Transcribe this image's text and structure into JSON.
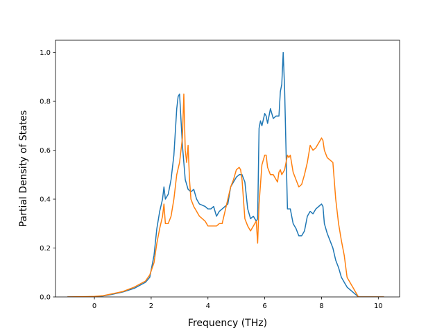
{
  "chart_data": {
    "type": "line",
    "title": "",
    "xlabel": "Frequency (THz)",
    "ylabel": "Partial Density of States",
    "xlim": [
      -1.37,
      10.75
    ],
    "ylim": [
      0,
      1.05
    ],
    "xticks": [
      0,
      2,
      4,
      6,
      8,
      10
    ],
    "yticks": [
      0.0,
      0.2,
      0.4,
      0.6,
      0.8,
      1.0
    ],
    "grid": false,
    "legend": "none",
    "series": [
      {
        "color": "#1f77b4",
        "x": [
          -0.95,
          0.0,
          0.3,
          0.6,
          1.0,
          1.4,
          1.8,
          1.95,
          2.1,
          2.2,
          2.3,
          2.4,
          2.45,
          2.5,
          2.6,
          2.7,
          2.8,
          2.9,
          2.95,
          3.0,
          3.1,
          3.15,
          3.2,
          3.3,
          3.4,
          3.5,
          3.6,
          3.7,
          3.9,
          4.0,
          4.1,
          4.2,
          4.3,
          4.4,
          4.5,
          4.6,
          4.7,
          4.8,
          4.9,
          5.0,
          5.1,
          5.2,
          5.3,
          5.4,
          5.5,
          5.6,
          5.7,
          5.75,
          5.8,
          5.85,
          5.9,
          6.0,
          6.05,
          6.1,
          6.2,
          6.3,
          6.4,
          6.5,
          6.55,
          6.6,
          6.65,
          6.7,
          6.75,
          6.8,
          6.9,
          7.0,
          7.1,
          7.2,
          7.3,
          7.4,
          7.5,
          7.6,
          7.7,
          7.8,
          7.9,
          8.0,
          8.05,
          8.1,
          8.2,
          8.3,
          8.4,
          8.5,
          8.6,
          8.7,
          8.8,
          8.9,
          9.0,
          9.1,
          9.2,
          9.3,
          10.2
        ],
        "y": [
          0.0,
          0.001,
          0.004,
          0.01,
          0.02,
          0.035,
          0.06,
          0.08,
          0.17,
          0.28,
          0.35,
          0.4,
          0.45,
          0.4,
          0.42,
          0.48,
          0.58,
          0.77,
          0.82,
          0.83,
          0.62,
          0.55,
          0.48,
          0.44,
          0.43,
          0.44,
          0.4,
          0.38,
          0.37,
          0.36,
          0.36,
          0.37,
          0.33,
          0.35,
          0.36,
          0.37,
          0.38,
          0.45,
          0.47,
          0.49,
          0.5,
          0.5,
          0.47,
          0.36,
          0.32,
          0.33,
          0.31,
          0.32,
          0.69,
          0.72,
          0.7,
          0.75,
          0.74,
          0.71,
          0.77,
          0.73,
          0.74,
          0.74,
          0.84,
          0.87,
          1.0,
          0.85,
          0.6,
          0.36,
          0.36,
          0.3,
          0.28,
          0.25,
          0.25,
          0.27,
          0.33,
          0.35,
          0.34,
          0.36,
          0.37,
          0.38,
          0.37,
          0.3,
          0.26,
          0.23,
          0.2,
          0.15,
          0.12,
          0.08,
          0.06,
          0.04,
          0.03,
          0.02,
          0.01,
          0.0,
          0.0
        ]
      },
      {
        "color": "#ff7f0e",
        "x": [
          -0.95,
          0.0,
          0.3,
          0.6,
          1.0,
          1.4,
          1.8,
          1.95,
          2.1,
          2.2,
          2.3,
          2.4,
          2.45,
          2.5,
          2.6,
          2.7,
          2.8,
          2.9,
          3.0,
          3.1,
          3.15,
          3.2,
          3.25,
          3.3,
          3.35,
          3.4,
          3.5,
          3.6,
          3.7,
          3.8,
          3.9,
          4.0,
          4.1,
          4.2,
          4.3,
          4.4,
          4.5,
          4.6,
          4.7,
          4.8,
          4.9,
          5.0,
          5.1,
          5.15,
          5.2,
          5.3,
          5.4,
          5.5,
          5.6,
          5.7,
          5.75,
          5.8,
          5.85,
          5.9,
          6.0,
          6.05,
          6.1,
          6.2,
          6.3,
          6.4,
          6.45,
          6.5,
          6.55,
          6.6,
          6.7,
          6.8,
          6.85,
          6.9,
          7.0,
          7.1,
          7.2,
          7.3,
          7.4,
          7.5,
          7.6,
          7.7,
          7.8,
          7.9,
          8.0,
          8.05,
          8.1,
          8.2,
          8.3,
          8.4,
          8.5,
          8.6,
          8.7,
          8.8,
          8.9,
          9.0,
          9.1,
          9.2,
          9.3,
          10.2
        ],
        "y": [
          0.0,
          0.002,
          0.005,
          0.012,
          0.022,
          0.04,
          0.065,
          0.09,
          0.14,
          0.22,
          0.28,
          0.33,
          0.38,
          0.3,
          0.3,
          0.33,
          0.4,
          0.5,
          0.55,
          0.65,
          0.83,
          0.6,
          0.55,
          0.62,
          0.48,
          0.4,
          0.37,
          0.35,
          0.33,
          0.32,
          0.31,
          0.29,
          0.29,
          0.29,
          0.29,
          0.3,
          0.3,
          0.35,
          0.4,
          0.45,
          0.48,
          0.52,
          0.53,
          0.52,
          0.48,
          0.32,
          0.29,
          0.27,
          0.29,
          0.31,
          0.22,
          0.38,
          0.46,
          0.54,
          0.58,
          0.58,
          0.53,
          0.5,
          0.5,
          0.48,
          0.47,
          0.51,
          0.52,
          0.5,
          0.52,
          0.58,
          0.57,
          0.58,
          0.51,
          0.48,
          0.45,
          0.46,
          0.5,
          0.55,
          0.62,
          0.6,
          0.61,
          0.63,
          0.65,
          0.64,
          0.6,
          0.57,
          0.56,
          0.55,
          0.4,
          0.3,
          0.23,
          0.17,
          0.08,
          0.06,
          0.04,
          0.02,
          0.0,
          0.0
        ]
      }
    ]
  }
}
